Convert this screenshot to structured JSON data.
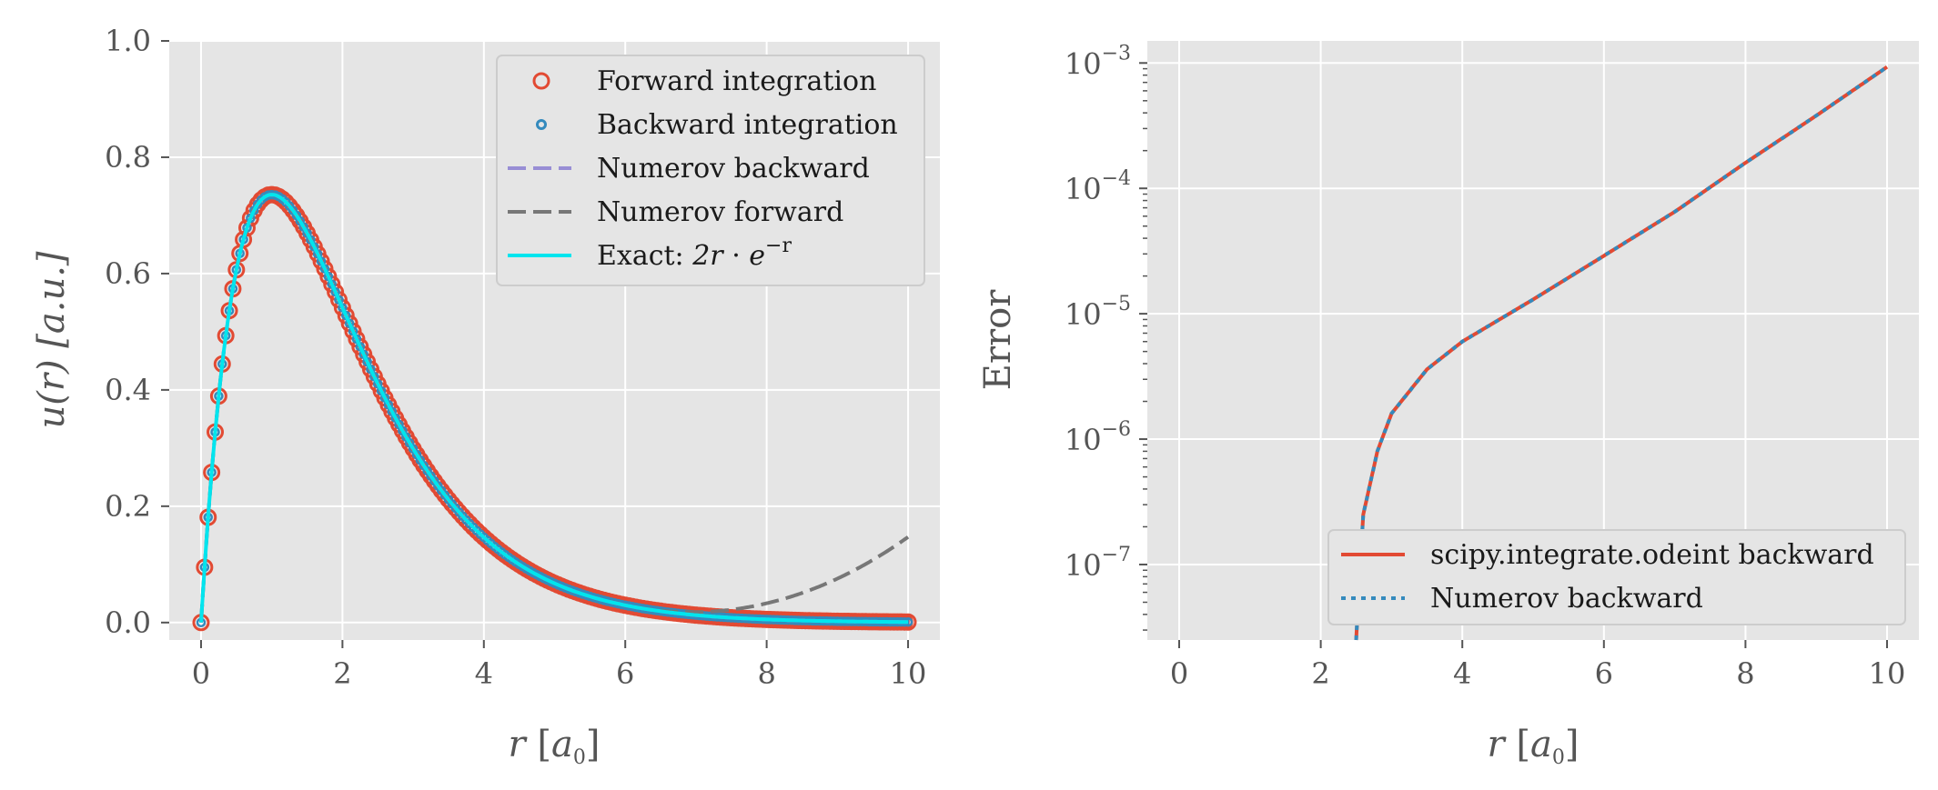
{
  "figure": {
    "colors": {
      "panel_bg": "#e5e5e5",
      "grid": "#ffffff",
      "forward_markers": "#e24a33",
      "backward_markers": "#348abd",
      "numerov_backward": "#988ed5",
      "numerov_forward": "#777777",
      "exact": "#00e5ee",
      "tick_text": "#555555"
    }
  },
  "chart_data": [
    {
      "type": "line",
      "xlabel": "r [a0]",
      "ylabel": "u(r) [a.u.]",
      "xlim": [
        -0.45,
        10.45
      ],
      "ylim": [
        -0.03,
        1.0
      ],
      "xticks": [
        "0",
        "2",
        "4",
        "6",
        "8",
        "10"
      ],
      "yticks": [
        "0.0",
        "0.2",
        "0.4",
        "0.6",
        "0.8",
        "1.0"
      ],
      "grid": true,
      "legend_position": "top-right",
      "legend": [
        "Forward integration",
        "Backward integration",
        "Numerov backward",
        "Numerov forward",
        "Exact: 2r · e^(−r)"
      ],
      "series": [
        {
          "name": "Forward integration",
          "style": "circle-markers",
          "x_range": [
            0,
            10
          ],
          "approx": "2r·e^(−r)"
        },
        {
          "name": "Backward integration",
          "style": "small-circle-markers",
          "x_range": [
            0,
            10
          ],
          "approx": "2r·e^(−r)"
        },
        {
          "name": "Numerov backward",
          "style": "dashed",
          "x_range": [
            0,
            10
          ],
          "approx": "2r·e^(−r)"
        },
        {
          "name": "Numerov forward",
          "style": "dashed",
          "x": [
            0,
            1,
            2,
            3,
            4,
            5,
            6,
            7,
            8,
            9,
            10
          ],
          "y": [
            0.0,
            0.736,
            0.541,
            0.299,
            0.147,
            0.068,
            0.032,
            0.023,
            0.034,
            0.075,
            0.155
          ]
        },
        {
          "name": "Exact: 2r · e^(−r)",
          "style": "solid",
          "x": [
            0,
            0.5,
            1,
            1.5,
            2,
            3,
            4,
            5,
            6,
            7,
            8,
            9,
            10
          ],
          "y": [
            0.0,
            0.607,
            0.736,
            0.669,
            0.541,
            0.299,
            0.147,
            0.067,
            0.03,
            0.013,
            0.005,
            0.002,
            0.001
          ]
        }
      ]
    },
    {
      "type": "line",
      "xlabel": "r [a0]",
      "ylabel": "Error",
      "yscale": "log",
      "xlim": [
        -0.45,
        10.45
      ],
      "ylim": [
        2.5e-08,
        0.0015
      ],
      "xticks": [
        "0",
        "2",
        "4",
        "6",
        "8",
        "10"
      ],
      "yticks": [
        "10^-7",
        "10^-6",
        "10^-5",
        "10^-4",
        "10^-3"
      ],
      "grid": true,
      "legend_position": "bottom-right",
      "legend": [
        "scipy.integrate.odeint backward",
        "Numerov backward"
      ],
      "series": [
        {
          "name": "scipy.integrate.odeint backward",
          "style": "solid",
          "x": [
            2.5,
            2.6,
            2.8,
            3.0,
            3.5,
            4.0,
            5.0,
            6.0,
            7.0,
            8.0,
            9.0,
            10.0
          ],
          "y": [
            2.5e-08,
            2.5e-07,
            8e-07,
            1.6e-06,
            3.6e-06,
            6e-06,
            1.3e-05,
            2.9e-05,
            6.5e-05,
            0.00016,
            0.00038,
            0.00093
          ]
        },
        {
          "name": "Numerov backward",
          "style": "dotted",
          "x": [
            2.5,
            2.6,
            2.8,
            3.0,
            3.5,
            4.0,
            5.0,
            6.0,
            7.0,
            8.0,
            9.0,
            10.0
          ],
          "y": [
            2.5e-08,
            2.5e-07,
            8e-07,
            1.6e-06,
            3.6e-06,
            6e-06,
            1.3e-05,
            2.9e-05,
            6.5e-05,
            0.00016,
            0.00038,
            0.00093
          ]
        }
      ]
    }
  ]
}
